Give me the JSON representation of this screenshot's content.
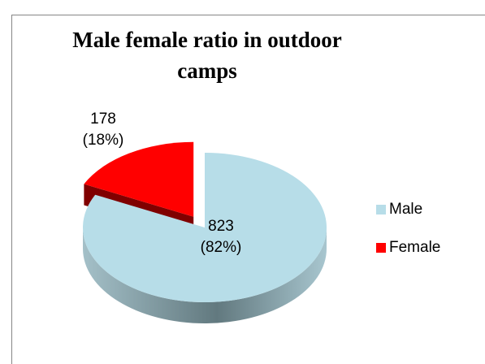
{
  "chart_data": {
    "type": "pie3d",
    "title": "Male female ratio in outdoor camps",
    "categories": [
      "Male",
      "Female"
    ],
    "values": [
      823,
      178
    ],
    "value_labels": [
      "823\n(82%)",
      "178\n(18%)"
    ],
    "colors": [
      "#b7dde8",
      "#ff0000"
    ],
    "legend": "right"
  }
}
